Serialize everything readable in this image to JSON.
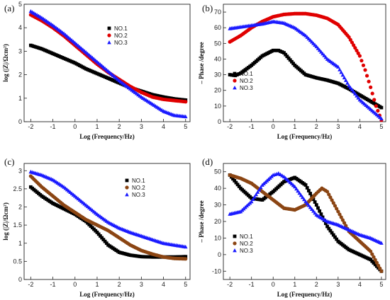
{
  "chart_data": [
    {
      "panel": "(a)",
      "type": "scatter",
      "xlabel": "Log (Frequency/Hz)",
      "ylabel": "log (|Z|/Ωcm²)",
      "xlim": [
        -2.3,
        5.2
      ],
      "ylim": [
        0,
        5
      ],
      "xticks": [
        -2,
        -1,
        0,
        1,
        2,
        3,
        4,
        5
      ],
      "yticks": [
        0,
        1,
        2,
        3,
        4,
        5
      ],
      "legend_position": "top-right",
      "series": [
        {
          "name": "NO.1",
          "color": "#000000",
          "marker": "square",
          "x": [
            -2,
            -1.5,
            -1,
            -0.5,
            0,
            0.5,
            1,
            1.5,
            2,
            2.5,
            3,
            3.5,
            4,
            4.5,
            5
          ],
          "y": [
            3.25,
            3.1,
            2.9,
            2.7,
            2.5,
            2.25,
            2.05,
            1.85,
            1.65,
            1.45,
            1.3,
            1.15,
            1.05,
            0.97,
            0.92
          ]
        },
        {
          "name": "NO.2",
          "color": "#e00000",
          "marker": "circle",
          "x": [
            -2,
            -1.5,
            -1,
            -0.5,
            0,
            0.5,
            1,
            1.5,
            2,
            2.5,
            3,
            3.5,
            4,
            4.5,
            5
          ],
          "y": [
            4.55,
            4.3,
            4.0,
            3.65,
            3.25,
            2.85,
            2.45,
            2.1,
            1.8,
            1.5,
            1.25,
            1.05,
            0.95,
            0.9,
            0.85
          ]
        },
        {
          "name": "NO.3",
          "color": "#1a1aff",
          "marker": "triangle",
          "x": [
            -2,
            -1.5,
            -1,
            -0.5,
            0,
            0.5,
            1,
            1.5,
            2,
            2.5,
            3,
            3.5,
            4,
            4.5,
            5
          ],
          "y": [
            4.7,
            4.42,
            4.1,
            3.75,
            3.35,
            2.95,
            2.55,
            2.15,
            1.75,
            1.4,
            1.05,
            0.75,
            0.45,
            0.27,
            0.22
          ]
        }
      ]
    },
    {
      "panel": "(b)",
      "type": "scatter",
      "xlabel": "Log (Frequency/Hz)",
      "ylabel": "– Phase /degree",
      "xlim": [
        -2.3,
        5.2
      ],
      "ylim": [
        0,
        75
      ],
      "xticks": [
        -2,
        -1,
        0,
        1,
        2,
        3,
        4,
        5
      ],
      "yticks": [
        0,
        10,
        20,
        30,
        40,
        50,
        60,
        70
      ],
      "legend_position": "bottom-left",
      "series": [
        {
          "name": "NO.1",
          "color": "#000000",
          "marker": "square",
          "x": [
            -2,
            -1.75,
            -1.5,
            -1,
            -0.5,
            0,
            0.25,
            0.5,
            1,
            1.5,
            2,
            2.5,
            3,
            3.5,
            4,
            4.5,
            5
          ],
          "y": [
            30,
            29.5,
            31,
            36,
            42,
            45.5,
            45.5,
            44,
            36,
            30,
            28,
            26.5,
            24.5,
            21,
            17,
            13,
            9
          ]
        },
        {
          "name": "NO.2",
          "color": "#e00000",
          "marker": "circle",
          "x": [
            -2,
            -1.5,
            -1,
            -0.5,
            0,
            0.5,
            1,
            1.5,
            2,
            2.5,
            3,
            3.5,
            4,
            4.25,
            4.5,
            4.75,
            5
          ],
          "y": [
            51,
            55,
            60,
            64,
            67,
            68.5,
            69,
            69,
            68,
            66,
            62,
            54,
            42,
            33,
            22,
            10,
            1
          ]
        },
        {
          "name": "NO.3",
          "color": "#1a1aff",
          "marker": "triangle",
          "x": [
            -2,
            -1.5,
            -1,
            -0.5,
            0,
            0.5,
            1,
            1.5,
            2,
            2.5,
            3,
            3.5,
            4,
            4.5,
            5
          ],
          "y": [
            59.5,
            60.5,
            61.5,
            62.5,
            64,
            63,
            60,
            55,
            48,
            40,
            35,
            23,
            14,
            8,
            2
          ]
        }
      ]
    },
    {
      "panel": "(c)",
      "type": "scatter",
      "xlabel": "Log (Frequency/Hz)",
      "ylabel": "log (|Z|/Ωcm²)",
      "xlim": [
        -2.3,
        5.2
      ],
      "ylim": [
        0,
        3.2
      ],
      "xticks": [
        -2,
        -1,
        0,
        1,
        2,
        3,
        4,
        5
      ],
      "yticks": [
        0,
        0.5,
        1,
        1.5,
        2,
        2.5,
        3
      ],
      "legend_position": "top-right",
      "series": [
        {
          "name": "NO.1",
          "color": "#000000",
          "marker": "square",
          "x": [
            -2,
            -1.5,
            -1,
            -0.5,
            0,
            0.5,
            1,
            1.5,
            2,
            2.5,
            3,
            3.5,
            4,
            4.5,
            5
          ],
          "y": [
            2.55,
            2.3,
            2.1,
            1.95,
            1.8,
            1.6,
            1.3,
            0.95,
            0.75,
            0.67,
            0.63,
            0.62,
            0.62,
            0.62,
            0.63
          ]
        },
        {
          "name": "NO.2",
          "color": "#8b4513",
          "marker": "circle",
          "x": [
            -2,
            -1.5,
            -1,
            -0.5,
            0,
            0.5,
            1,
            1.5,
            2,
            2.5,
            3,
            3.5,
            4,
            4.5,
            5
          ],
          "y": [
            2.85,
            2.55,
            2.3,
            2.05,
            1.85,
            1.65,
            1.5,
            1.35,
            1.15,
            0.95,
            0.8,
            0.7,
            0.62,
            0.58,
            0.57
          ]
        },
        {
          "name": "NO.3",
          "color": "#1a1aff",
          "marker": "triangle",
          "x": [
            -2,
            -1.5,
            -1,
            -0.5,
            0,
            0.5,
            1,
            1.5,
            2,
            2.5,
            3,
            3.5,
            4,
            4.5,
            5
          ],
          "y": [
            2.97,
            2.88,
            2.75,
            2.55,
            2.3,
            2.05,
            1.8,
            1.58,
            1.42,
            1.3,
            1.2,
            1.1,
            1.0,
            0.95,
            0.9
          ]
        }
      ]
    },
    {
      "panel": "(d)",
      "type": "scatter",
      "xlabel": "Log (Frequency/Hz)",
      "ylabel": "– Phase /degree",
      "xlim": [
        -2.3,
        5.2
      ],
      "ylim": [
        -15,
        55
      ],
      "xticks": [
        -2,
        -1,
        0,
        1,
        2,
        3,
        4,
        5
      ],
      "yticks": [
        -10,
        0,
        10,
        20,
        30,
        40,
        50
      ],
      "legend_position": "bottom-left",
      "series": [
        {
          "name": "NO.1",
          "color": "#000000",
          "marker": "square",
          "x": [
            -2,
            -1.5,
            -1,
            -0.5,
            0,
            0.5,
            1,
            1.5,
            2,
            2.5,
            3,
            3.5,
            4,
            4.5,
            5
          ],
          "y": [
            48,
            40,
            34,
            33,
            38,
            44,
            46.5,
            42,
            30,
            17,
            8,
            3,
            0,
            -3,
            -10
          ]
        },
        {
          "name": "NO.2",
          "color": "#8b4513",
          "marker": "circle",
          "x": [
            -2,
            -1.5,
            -1,
            -0.5,
            0,
            0.5,
            1,
            1.5,
            2,
            2.25,
            2.5,
            3,
            3.5,
            4,
            4.5,
            5
          ],
          "y": [
            48,
            46,
            43,
            38,
            33,
            28,
            27,
            30,
            37,
            40,
            38,
            26,
            14,
            8,
            2,
            -10
          ]
        },
        {
          "name": "NO.3",
          "color": "#1a1aff",
          "marker": "triangle",
          "x": [
            -2,
            -1.5,
            -1,
            -0.5,
            0,
            0.25,
            0.5,
            1,
            1.5,
            2,
            2.5,
            3,
            3.5,
            4,
            4.5,
            5
          ],
          "y": [
            24.5,
            26,
            32,
            42,
            48,
            49,
            47,
            41,
            32,
            24,
            20,
            18,
            15,
            12,
            10,
            7
          ]
        }
      ]
    }
  ]
}
